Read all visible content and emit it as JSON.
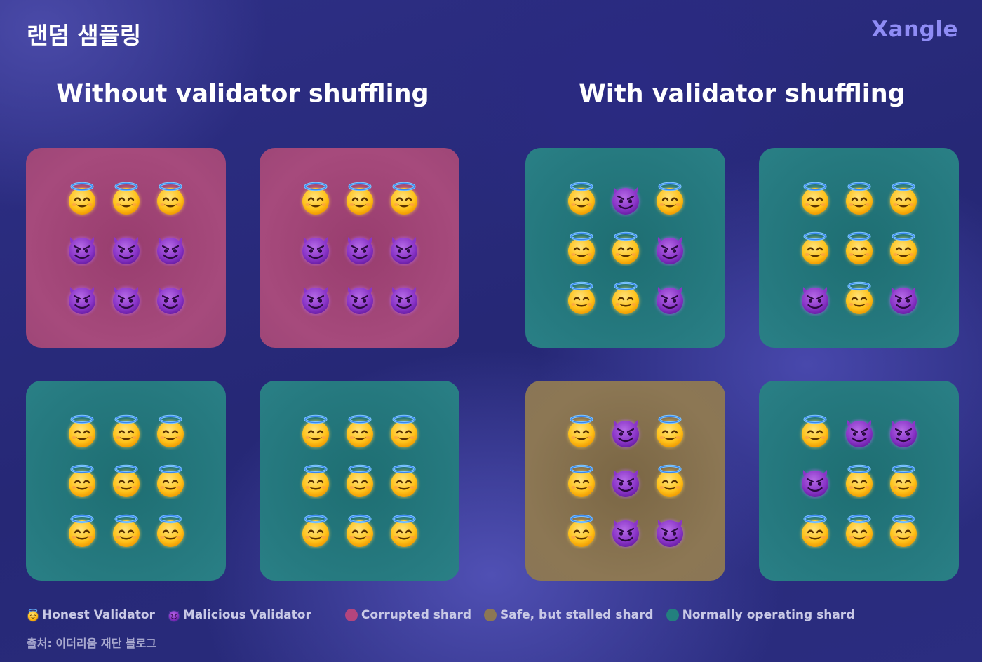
{
  "header": {
    "title": "랜덤 샘플링",
    "brand": "Xangle"
  },
  "panels": [
    {
      "heading": "Without validator shuffling",
      "shards": [
        {
          "status": "corrupted",
          "grid": [
            "honest",
            "honest",
            "honest",
            "malicious",
            "malicious",
            "malicious",
            "malicious",
            "malicious",
            "malicious"
          ]
        },
        {
          "status": "corrupted",
          "grid": [
            "honest",
            "honest",
            "honest",
            "malicious",
            "malicious",
            "malicious",
            "malicious",
            "malicious",
            "malicious"
          ]
        },
        {
          "status": "normal",
          "grid": [
            "honest",
            "honest",
            "honest",
            "honest",
            "honest",
            "honest",
            "honest",
            "honest",
            "honest"
          ]
        },
        {
          "status": "normal",
          "grid": [
            "honest",
            "honest",
            "honest",
            "honest",
            "honest",
            "honest",
            "honest",
            "honest",
            "honest"
          ]
        }
      ]
    },
    {
      "heading": "With validator shuffling",
      "shards": [
        {
          "status": "normal",
          "grid": [
            "honest",
            "malicious",
            "honest",
            "honest",
            "honest",
            "malicious",
            "honest",
            "honest",
            "malicious"
          ]
        },
        {
          "status": "normal",
          "grid": [
            "honest",
            "honest",
            "honest",
            "honest",
            "honest",
            "honest",
            "malicious",
            "honest",
            "malicious"
          ]
        },
        {
          "status": "stalled",
          "grid": [
            "honest",
            "malicious",
            "honest",
            "honest",
            "malicious",
            "honest",
            "honest",
            "malicious",
            "malicious"
          ]
        },
        {
          "status": "normal",
          "grid": [
            "honest",
            "malicious",
            "malicious",
            "malicious",
            "honest",
            "honest",
            "honest",
            "honest",
            "honest"
          ]
        }
      ]
    }
  ],
  "legend": {
    "honest_label": "Honest Validator",
    "malicious_label": "Malicious Validator",
    "corrupted_label": "Corrupted shard",
    "stalled_label": "Safe, but stalled shard",
    "normal_label": "Normally operating shard",
    "colors": {
      "corrupted": "#b3457d",
      "stalled": "#8c7754",
      "normal": "#23807e"
    }
  },
  "source": "출처: 이더리움 재단 블로그"
}
